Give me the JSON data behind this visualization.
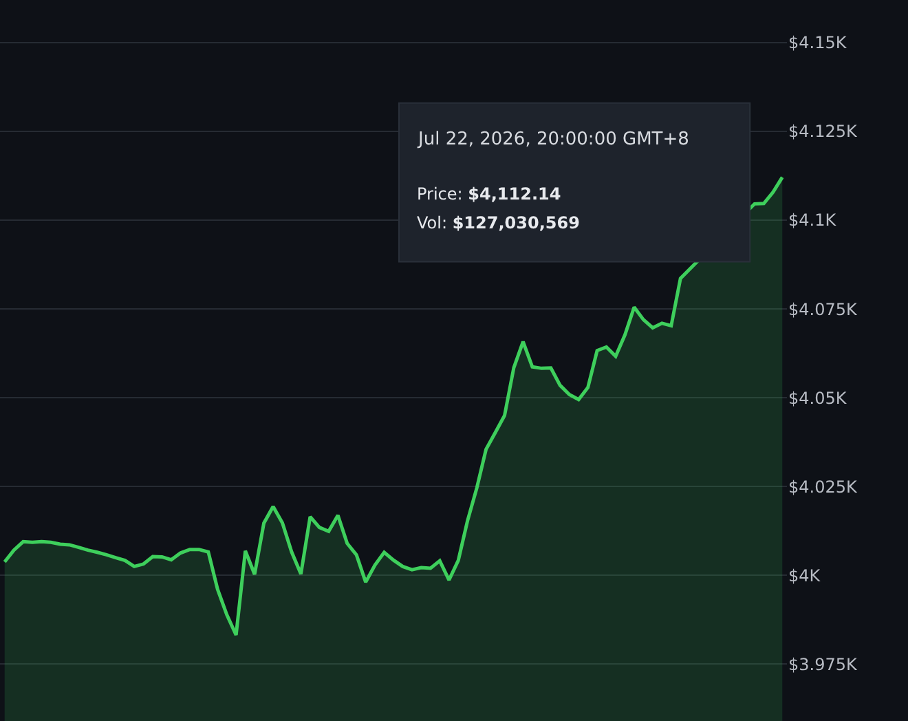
{
  "chart_data": {
    "type": "area",
    "categories": [
      null,
      null,
      null,
      null,
      null,
      null,
      null,
      null,
      null,
      null,
      null,
      null,
      null,
      null,
      null,
      null,
      null,
      null,
      null,
      null,
      null,
      null,
      null,
      null,
      null,
      null,
      null,
      null,
      null,
      null,
      null,
      null,
      null,
      null,
      null,
      null,
      null,
      null,
      null,
      null,
      null,
      null,
      null,
      null,
      null,
      null,
      null,
      null,
      null,
      null,
      null,
      null,
      null,
      null,
      null,
      null,
      null,
      null,
      null,
      null,
      null,
      null,
      null,
      null,
      null,
      null,
      null,
      null,
      null,
      null,
      null,
      null,
      null,
      null,
      null,
      null,
      null,
      null,
      null,
      null,
      null,
      null,
      null,
      null,
      null
    ],
    "series": [
      {
        "color": "#3ecf5c",
        "values": [
          4003.8,
          4007.1,
          4009.5,
          4009.3,
          4009.5,
          4009.3,
          4008.8,
          4008.6,
          4007.9,
          4007.1,
          4006.5,
          4005.8,
          4005.0,
          4004.2,
          4002.5,
          4003.2,
          4005.3,
          4005.2,
          4004.4,
          4006.3,
          4007.3,
          4007.3,
          4006.6,
          3996.1,
          3988.9,
          3983.2,
          4006.9,
          4000.3,
          4014.7,
          4019.4,
          4014.8,
          4006.6,
          4000.4,
          4016.5,
          4013.5,
          4012.4,
          4016.9,
          4009.0,
          4005.8,
          3998.1,
          4002.9,
          4006.5,
          4004.3,
          4002.5,
          4001.6,
          4002.2,
          4002.0,
          4004.1,
          3998.7,
          4004.2,
          4015.4,
          4024.6,
          4035.5,
          4040.2,
          4045.0,
          4058.5,
          4065.8,
          4058.7,
          4058.3,
          4058.4,
          4053.5,
          4050.9,
          4049.5,
          4052.9,
          4063.3,
          4064.3,
          4061.7,
          4067.7,
          4075.5,
          4072.0,
          4069.7,
          4071.0,
          4070.3,
          4083.6,
          null,
          null,
          null,
          null,
          null,
          null,
          null,
          4104.6,
          4104.7,
          4107.9,
          4112.1
        ]
      }
    ],
    "ylim": [
      3959,
      4162
    ],
    "yticks": [
      {
        "value": 3975,
        "label": "$3.975K"
      },
      {
        "value": 4000,
        "label": "$4K"
      },
      {
        "value": 4025,
        "label": "$4.025K"
      },
      {
        "value": 4050,
        "label": "$4.05K"
      },
      {
        "value": 4075,
        "label": "$4.075K"
      },
      {
        "value": 4100,
        "label": "$4.1K"
      },
      {
        "value": 4125,
        "label": "$4.125K"
      },
      {
        "value": 4150,
        "label": "$4.15K"
      }
    ],
    "grid": "y",
    "marker": "none",
    "line_style": "solid",
    "annotations": [
      "Jul 22, 2026, 20:00:00 GMT+8",
      "Price: $4,112.14",
      "Vol: $127,030,569"
    ]
  }
}
